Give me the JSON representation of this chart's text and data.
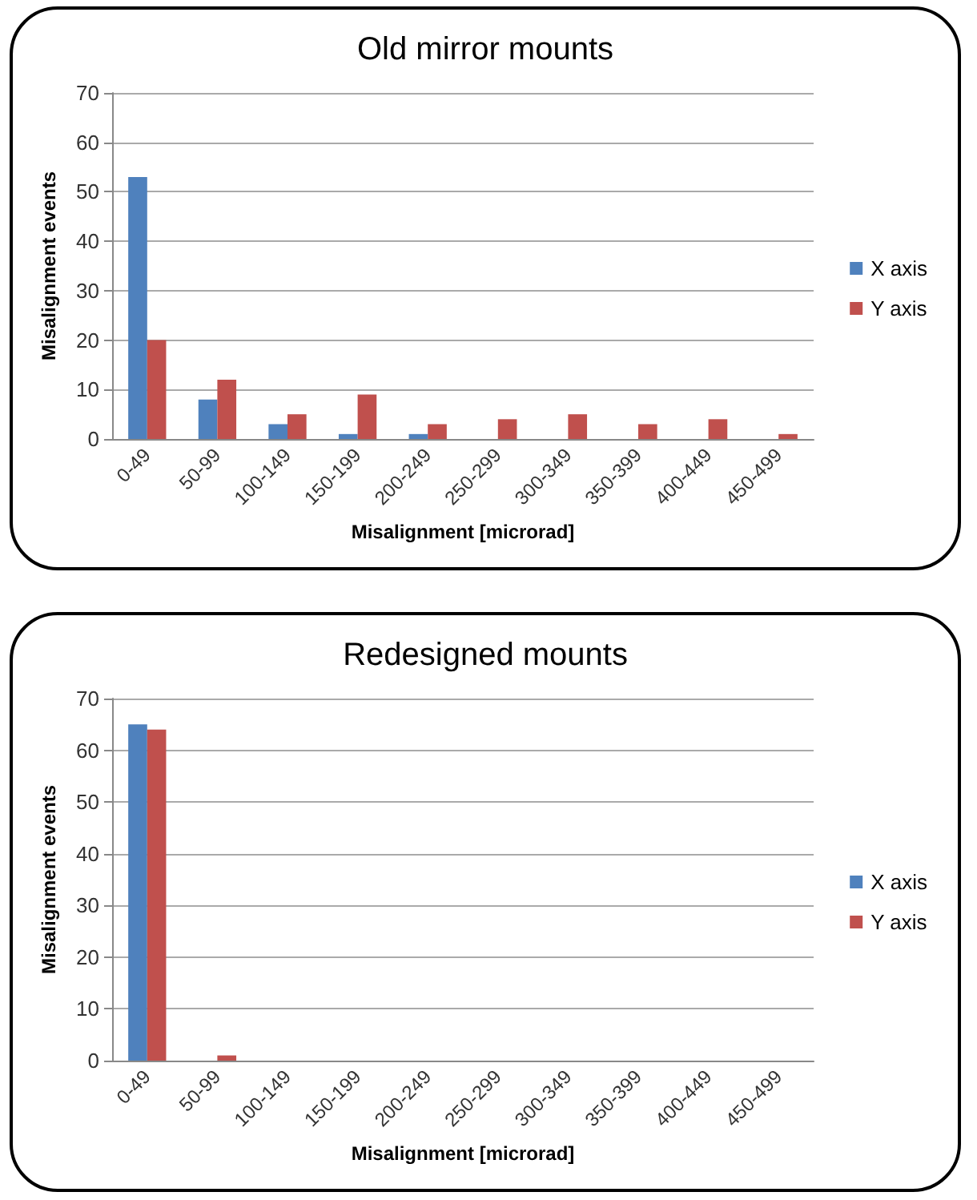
{
  "chart_data": [
    {
      "type": "bar",
      "title": "Old mirror mounts",
      "xlabel": "Misalignment [microrad]",
      "ylabel": "Misalignment events",
      "categories": [
        "0-49",
        "50-99",
        "100-149",
        "150-199",
        "200-249",
        "250-299",
        "300-349",
        "350-399",
        "400-449",
        "450-499"
      ],
      "series": [
        {
          "name": "X axis",
          "color": "#4f81bd",
          "values": [
            53,
            8,
            3,
            1,
            1,
            0,
            0,
            0,
            0,
            0
          ]
        },
        {
          "name": "Y axis",
          "color": "#c0504d",
          "values": [
            20,
            12,
            5,
            9,
            3,
            4,
            5,
            3,
            4,
            1
          ]
        }
      ],
      "ylim": [
        0,
        70
      ],
      "yticks": [
        0,
        10,
        20,
        30,
        40,
        50,
        60,
        70
      ],
      "grid": "y",
      "legend": "right"
    },
    {
      "type": "bar",
      "title": "Redesigned mounts",
      "xlabel": "Misalignment [microrad]",
      "ylabel": "Misalignment events",
      "categories": [
        "0-49",
        "50-99",
        "100-149",
        "150-199",
        "200-249",
        "250-299",
        "300-349",
        "350-399",
        "400-449",
        "450-499"
      ],
      "series": [
        {
          "name": "X axis",
          "color": "#4f81bd",
          "values": [
            65,
            0,
            0,
            0,
            0,
            0,
            0,
            0,
            0,
            0
          ]
        },
        {
          "name": "Y axis",
          "color": "#c0504d",
          "values": [
            64,
            1,
            0,
            0,
            0,
            0,
            0,
            0,
            0,
            0
          ]
        }
      ],
      "ylim": [
        0,
        70
      ],
      "yticks": [
        0,
        10,
        20,
        30,
        40,
        50,
        60,
        70
      ],
      "grid": "y",
      "legend": "right"
    }
  ]
}
